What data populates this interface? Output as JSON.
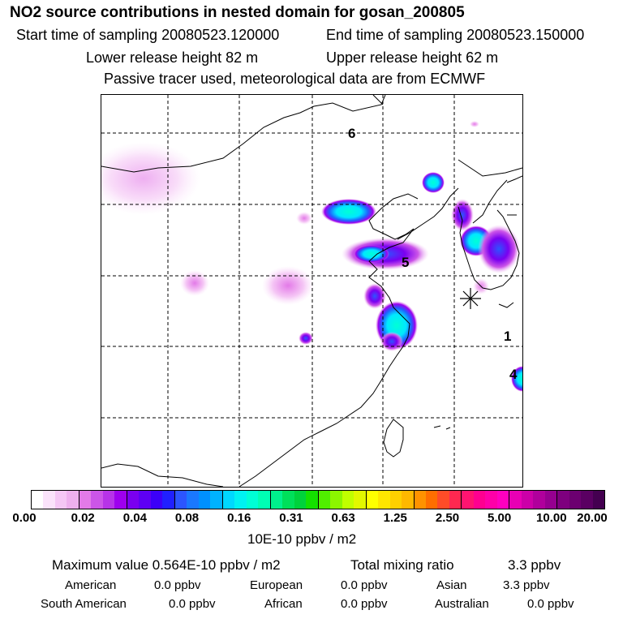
{
  "header": {
    "title": "NO2 source contributions in nested domain for gosan_200805",
    "start_label": "Start time of sampling 20080523.120000",
    "end_label": "End time of sampling 20080523.150000",
    "lower_label": "Lower release height   82 m",
    "upper_label": "Upper release height   62 m",
    "passive_label": "Passive tracer used, meteorological data are from ECMWF"
  },
  "map": {
    "region_labels": [
      "6",
      "5",
      "1",
      "4"
    ],
    "receptor_marker": "asterisk-marker"
  },
  "colorbar": {
    "tick_labels": [
      "0.00",
      "0.02",
      "0.04",
      "0.08",
      "0.16",
      "0.31",
      "0.63",
      "1.25",
      "2.50",
      "5.00",
      "10.00",
      "20.00"
    ],
    "colors": [
      "#ffffff",
      "#fbe3fb",
      "#f5c7f5",
      "#eeb0ee",
      "#e37ae8",
      "#cc55e8",
      "#b733e8",
      "#9e00ee",
      "#7a00f0",
      "#5e00f4",
      "#3c00f8",
      "#2020ff",
      "#2c55ff",
      "#1a78ff",
      "#0090ff",
      "#00b2ff",
      "#00d8ff",
      "#00f2f2",
      "#00ffd6",
      "#00ffb4",
      "#00f08c",
      "#00e05a",
      "#00d23c",
      "#14e000",
      "#50ee00",
      "#8cf600",
      "#c0ff00",
      "#e2f800",
      "#ffff00",
      "#ffe600",
      "#ffd000",
      "#ffb800",
      "#ff9200",
      "#ff6e00",
      "#ff4c28",
      "#ff2850",
      "#ff1470",
      "#ff0090",
      "#ff00a8",
      "#ff00c0",
      "#e800b4",
      "#cc00a8",
      "#b0009c",
      "#960090",
      "#7e007e",
      "#6c0070",
      "#5a0062",
      "#440050"
    ],
    "unit_label": "10E-10 ppbv / m2"
  },
  "summary": {
    "max_label": "Maximum value  0.564E-10 ppbv / m2",
    "total_label": "Total mixing ratio",
    "total_value": "3.3 ppbv",
    "regions": [
      {
        "name": "American",
        "value": "0.0 ppbv"
      },
      {
        "name": "European",
        "value": "0.0 ppbv"
      },
      {
        "name": "Asian",
        "value": "3.3 ppbv"
      },
      {
        "name": "South American",
        "value": "0.0 ppbv"
      },
      {
        "name": "African",
        "value": "0.0 ppbv"
      },
      {
        "name": "Australian",
        "value": "0.0 ppbv"
      }
    ]
  }
}
